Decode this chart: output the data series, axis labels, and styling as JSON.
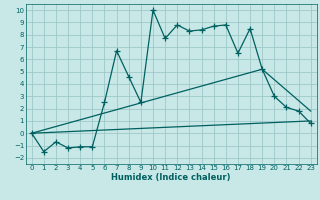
{
  "xlabel": "Humidex (Indice chaleur)",
  "bg_color": "#c8e8e8",
  "line_color": "#006060",
  "grid_color": "#a0c8c8",
  "xlim": [
    -0.5,
    23.5
  ],
  "ylim": [
    -2.5,
    10.5
  ],
  "xticks": [
    0,
    1,
    2,
    3,
    4,
    5,
    6,
    7,
    8,
    9,
    10,
    11,
    12,
    13,
    14,
    15,
    16,
    17,
    18,
    19,
    20,
    21,
    22,
    23
  ],
  "yticks": [
    -2,
    -1,
    0,
    1,
    2,
    3,
    4,
    5,
    6,
    7,
    8,
    9,
    10
  ],
  "series_main": [
    [
      0,
      0.0
    ],
    [
      1,
      -1.5
    ],
    [
      2,
      -0.7
    ],
    [
      3,
      -1.2
    ],
    [
      4,
      -1.1
    ],
    [
      5,
      -1.1
    ],
    [
      6,
      2.5
    ],
    [
      7,
      6.7
    ],
    [
      8,
      4.6
    ],
    [
      9,
      2.5
    ],
    [
      10,
      10.0
    ],
    [
      11,
      7.7
    ],
    [
      12,
      8.8
    ],
    [
      13,
      8.3
    ],
    [
      14,
      8.4
    ],
    [
      15,
      8.7
    ],
    [
      16,
      8.8
    ],
    [
      17,
      6.5
    ],
    [
      18,
      8.5
    ],
    [
      19,
      5.2
    ],
    [
      20,
      3.0
    ],
    [
      21,
      2.1
    ],
    [
      22,
      1.8
    ],
    [
      23,
      0.8
    ]
  ],
  "line_lower": [
    [
      0,
      0.0
    ],
    [
      23,
      1.0
    ]
  ],
  "line_upper": [
    [
      0,
      0.0
    ],
    [
      19,
      5.2
    ],
    [
      23,
      1.8
    ]
  ]
}
